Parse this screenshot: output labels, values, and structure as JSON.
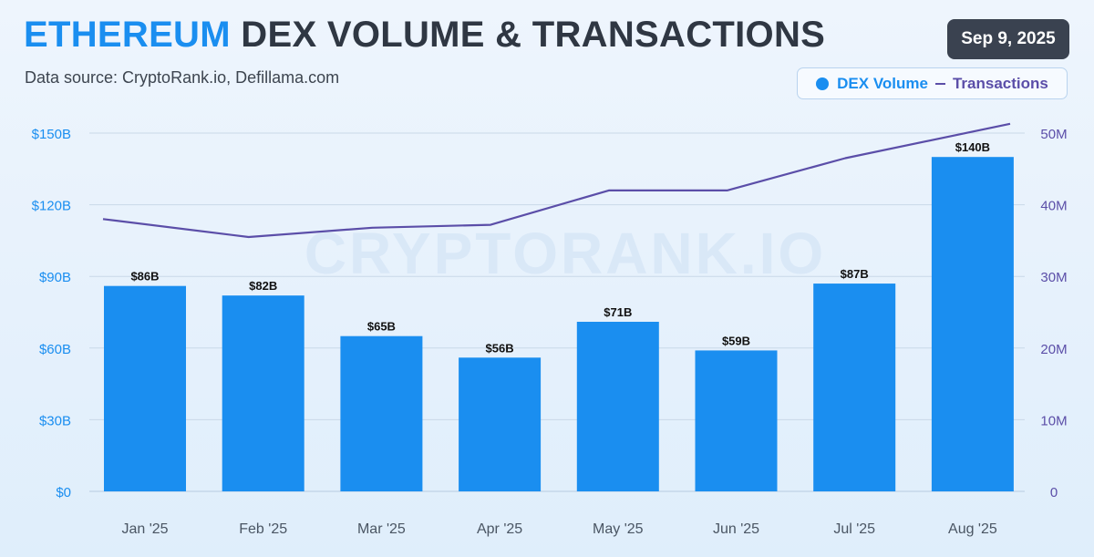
{
  "header": {
    "title_accent": "ETHEREUM",
    "title_rest": "DEX VOLUME & TRANSACTIONS",
    "subtitle": "Data source: CryptoRank.io, Defillama.com",
    "date": "Sep 9, 2025"
  },
  "watermark": "CRYPTORANK.IO",
  "colors": {
    "bar": "#1a8ef0",
    "line": "#5b4ea8",
    "left_axis": "#1a8ef0",
    "right_axis": "#5b4ea8",
    "title_accent": "#1a8ef0",
    "title_text": "#2f3743"
  },
  "chart_data": {
    "type": "bar",
    "categories": [
      "Jan '25",
      "Feb '25",
      "Mar '25",
      "Apr '25",
      "May '25",
      "Jun '25",
      "Jul '25",
      "Aug '25"
    ],
    "series": [
      {
        "name": "DEX Volume",
        "type": "bar",
        "axis": "left",
        "values": [
          86,
          82,
          65,
          56,
          71,
          59,
          87,
          140
        ],
        "data_labels": [
          "$86B",
          "$82B",
          "$65B",
          "$56B",
          "$71B",
          "$59B",
          "$87B",
          "$140B"
        ]
      },
      {
        "name": "Transactions",
        "type": "line",
        "axis": "right",
        "values": [
          38,
          35.5,
          36.8,
          37.2,
          42,
          42,
          46.5,
          51.3
        ]
      }
    ],
    "left_axis": {
      "ylim": [
        0,
        150
      ],
      "ticks": [
        0,
        30,
        60,
        90,
        120,
        150
      ],
      "tick_labels": [
        "$0",
        "$30B",
        "$60B",
        "$90B",
        "$120B",
        "$150B"
      ]
    },
    "right_axis": {
      "ylim": [
        0,
        50
      ],
      "ticks": [
        0,
        10,
        20,
        30,
        40,
        50
      ],
      "tick_labels": [
        "0",
        "10M",
        "20M",
        "30M",
        "40M",
        "50M"
      ]
    },
    "legend": {
      "placement": "top-right",
      "entries": [
        "DEX Volume",
        "Transactions"
      ]
    },
    "grid": "horizontal"
  }
}
